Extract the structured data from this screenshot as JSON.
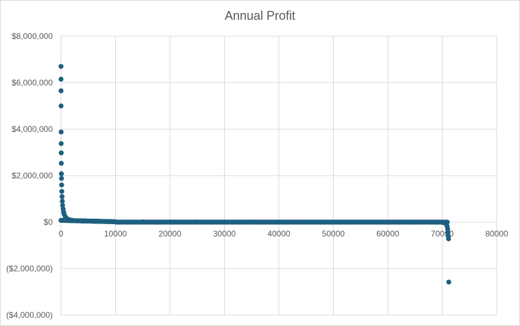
{
  "chart_data": {
    "type": "scatter",
    "title": "Annual Profit",
    "xlabel": "",
    "ylabel": "",
    "xlim": [
      0,
      80000
    ],
    "ylim": [
      -4000000,
      8000000
    ],
    "x_ticks": [
      0,
      10000,
      20000,
      30000,
      40000,
      50000,
      60000,
      70000,
      80000
    ],
    "x_tick_labels": [
      "0",
      "10000",
      "20000",
      "30000",
      "40000",
      "50000",
      "60000",
      "70000",
      "80000"
    ],
    "y_ticks": [
      8000000,
      6000000,
      4000000,
      2000000,
      0,
      -2000000,
      -4000000
    ],
    "y_tick_labels": [
      "$8,000,000",
      "$6,000,000",
      "$4,000,000",
      "$2,000,000",
      "$0",
      "($2,000,000)",
      "($4,000,000)"
    ],
    "grid": true,
    "legend": "none",
    "marker_color": "#1f5f7f",
    "series": [
      {
        "x": [
          5,
          10,
          15,
          20,
          30,
          40,
          50,
          60,
          80,
          100,
          120,
          150,
          200,
          250,
          300,
          400,
          500,
          600,
          800,
          1000,
          1500,
          2000,
          3000,
          4000,
          6000,
          8000,
          10000,
          15000,
          20000,
          25000,
          30000,
          35000,
          40000,
          45000,
          50000,
          55000,
          60000,
          65000,
          69000,
          70000,
          70400,
          70600,
          70800,
          70900,
          71000,
          71050,
          71100,
          71150,
          71200
        ],
        "y": [
          6700000,
          6150000,
          5650000,
          5000000,
          3880000,
          3380000,
          2980000,
          2530000,
          2080000,
          1880000,
          1600000,
          1320000,
          1100000,
          900000,
          720000,
          560000,
          420000,
          330000,
          230000,
          170000,
          110000,
          80000,
          55000,
          40000,
          30000,
          22000,
          16000,
          12000,
          9000,
          7000,
          5000,
          4000,
          3000,
          2000,
          1000,
          500,
          0,
          -1000,
          -5000,
          -10000,
          -30000,
          -60000,
          -100000,
          -180000,
          -300000,
          -450000,
          -600000,
          -720000,
          -2580000
        ]
      }
    ]
  }
}
